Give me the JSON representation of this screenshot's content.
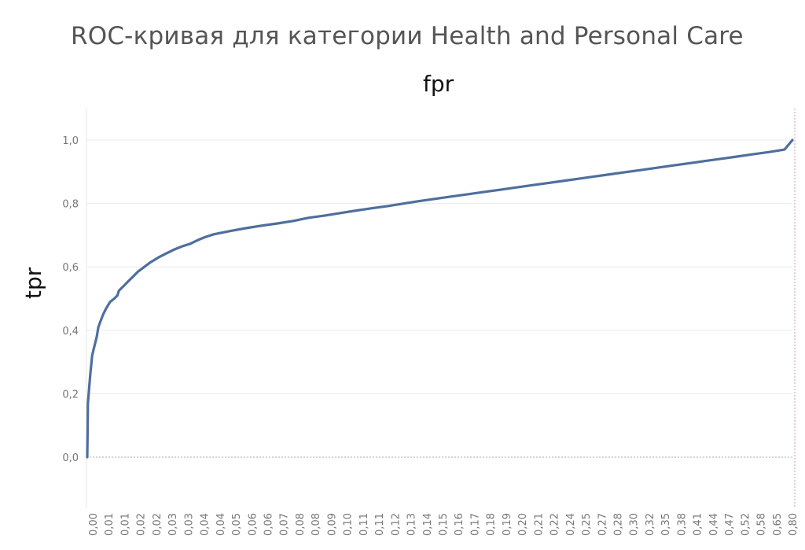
{
  "chart_data": {
    "type": "line",
    "title": "ROC-кривая для категории Health and Personal Care",
    "xlabel": "fpr",
    "ylabel": "tpr",
    "ylim": [
      -0.15,
      1.1
    ],
    "y_ticks": [
      "0,0",
      "0,2",
      "0,4",
      "0,6",
      "0,8",
      "1,0"
    ],
    "y_tick_values": [
      0,
      0.2,
      0.4,
      0.6,
      0.8,
      1.0
    ],
    "x_tick_labels": [
      "0,00",
      "0,01",
      "0,01",
      "0,02",
      "0,02",
      "0,03",
      "0,03",
      "0,04",
      "0,04",
      "0,05",
      "0,06",
      "0,06",
      "0,07",
      "0,08",
      "0,08",
      "0,09",
      "0,10",
      "0,11",
      "0,11",
      "0,12",
      "0,13",
      "0,14",
      "0,15",
      "0,16",
      "0,17",
      "0,18",
      "0,19",
      "0,20",
      "0,21",
      "0,22",
      "0,24",
      "0,25",
      "0,27",
      "0,28",
      "0,30",
      "0,32",
      "0,35",
      "0,38",
      "0,41",
      "0,44",
      "0,47",
      "0,52",
      "0,58",
      "0,65",
      "0,80"
    ],
    "x_axis_note": "discrete (ordinal) fpr axis",
    "series": [
      {
        "color": "#4e6f9e",
        "points": [
          [
            0.0,
            0.0
          ],
          [
            0.02,
            0.08
          ],
          [
            0.04,
            0.17
          ],
          [
            0.09,
            0.2
          ],
          [
            0.14,
            0.23
          ],
          [
            0.19,
            0.26
          ],
          [
            0.25,
            0.29
          ],
          [
            0.31,
            0.32
          ],
          [
            0.4,
            0.34
          ],
          [
            0.5,
            0.36
          ],
          [
            0.6,
            0.38
          ],
          [
            0.7,
            0.41
          ],
          [
            0.85,
            0.43
          ],
          [
            1.0,
            0.45
          ],
          [
            1.2,
            0.47
          ],
          [
            1.45,
            0.49
          ],
          [
            1.7,
            0.5
          ],
          [
            1.9,
            0.51
          ],
          [
            2.0,
            0.525
          ],
          [
            2.3,
            0.54
          ],
          [
            2.6,
            0.555
          ],
          [
            2.9,
            0.57
          ],
          [
            3.2,
            0.585
          ],
          [
            3.6,
            0.6
          ],
          [
            4.0,
            0.615
          ],
          [
            4.5,
            0.63
          ],
          [
            5.0,
            0.643
          ],
          [
            5.5,
            0.655
          ],
          [
            6.0,
            0.665
          ],
          [
            6.5,
            0.673
          ],
          [
            7.0,
            0.685
          ],
          [
            7.5,
            0.695
          ],
          [
            8.0,
            0.703
          ],
          [
            9.0,
            0.713
          ],
          [
            10.0,
            0.722
          ],
          [
            11.0,
            0.73
          ],
          [
            12.0,
            0.737
          ],
          [
            13.0,
            0.745
          ],
          [
            14.0,
            0.755
          ],
          [
            15.0,
            0.762
          ],
          [
            16.0,
            0.77
          ],
          [
            17.0,
            0.778
          ],
          [
            18.0,
            0.785
          ],
          [
            19.0,
            0.792
          ],
          [
            20.0,
            0.8
          ],
          [
            21.0,
            0.808
          ],
          [
            22.0,
            0.815
          ],
          [
            23.0,
            0.822
          ],
          [
            24.0,
            0.829
          ],
          [
            25.0,
            0.836
          ],
          [
            26.0,
            0.843
          ],
          [
            27.0,
            0.85
          ],
          [
            28.0,
            0.857
          ],
          [
            29.0,
            0.864
          ],
          [
            30.0,
            0.871
          ],
          [
            31.0,
            0.878
          ],
          [
            32.0,
            0.885
          ],
          [
            33.0,
            0.892
          ],
          [
            34.0,
            0.899
          ],
          [
            35.0,
            0.906
          ],
          [
            36.0,
            0.913
          ],
          [
            37.0,
            0.92
          ],
          [
            38.0,
            0.927
          ],
          [
            39.0,
            0.934
          ],
          [
            40.0,
            0.941
          ],
          [
            41.0,
            0.948
          ],
          [
            42.0,
            0.955
          ],
          [
            43.0,
            0.962
          ],
          [
            44.0,
            0.97
          ],
          [
            44.5,
            1.0
          ]
        ]
      }
    ]
  }
}
